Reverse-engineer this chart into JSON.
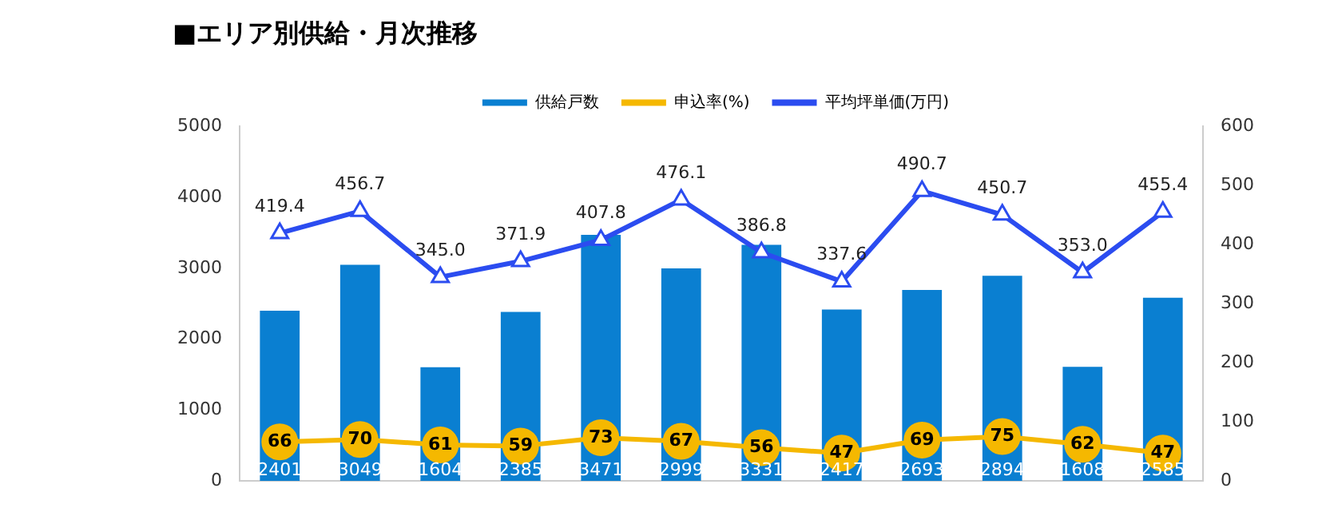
{
  "chart_data": {
    "type": "bar",
    "title": "■エリア別供給・月次推移",
    "categories": [
      null,
      null,
      null,
      null,
      null,
      null,
      null,
      null,
      null,
      null,
      null,
      null
    ],
    "series": [
      {
        "name": "供給戸数",
        "color": "#0a7fd1",
        "values": [
          2401,
          3049,
          1604,
          2385,
          3471,
          2999,
          3331,
          2417,
          2693,
          2894,
          1608,
          2585
        ]
      },
      {
        "name": "申込率(%)",
        "type": "line",
        "axis": "y2",
        "marker": "circle",
        "color": "#f5b800",
        "values": [
          66,
          70,
          61,
          59,
          73,
          67,
          56,
          47,
          69,
          75,
          62,
          47
        ]
      },
      {
        "name": "平均坪単価(万円)",
        "type": "line",
        "axis": "y2",
        "marker": "triangle",
        "color": "#2b4cf0",
        "values": [
          419.4,
          456.7,
          345.0,
          371.9,
          407.8,
          476.1,
          386.8,
          337.6,
          490.7,
          450.7,
          353.0,
          455.4
        ],
        "value_labels": [
          "419.4",
          "456.7",
          "345.0",
          "371.9",
          "407.8",
          "476.1",
          "386.8",
          "337.6",
          "490.7",
          "450.7",
          "353.0",
          "455.4"
        ]
      }
    ],
    "ylim": [
      0,
      5000
    ],
    "yticks": [
      0,
      1000,
      2000,
      3000,
      4000,
      5000
    ],
    "y2lim": [
      0,
      600
    ],
    "y2ticks": [
      0,
      100,
      200,
      300,
      400,
      500,
      600
    ],
    "grid": false,
    "legend": "top",
    "data_labels": true
  }
}
